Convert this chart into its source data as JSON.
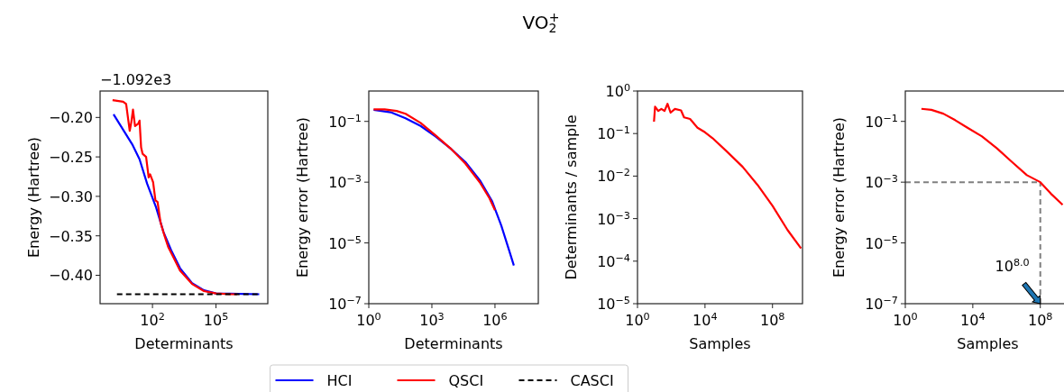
{
  "chart_data": [
    {
      "type": "line",
      "xlabel": "Determinants",
      "ylabel": "Energy (Hartree)",
      "log": "x",
      "legend": "bottom",
      "annotations": [
        "−1.092e3"
      ],
      "xlim": [
        0.335,
        28000000
      ],
      "xticks": [
        {
          "value": 100,
          "label": "10$^{2}$"
        },
        {
          "value": 100000,
          "label": "10$^{5}$"
        }
      ],
      "ylim": [
        -0.436,
        -0.1665
      ],
      "yticks": [
        {
          "value": -0.2,
          "label": "−0.20"
        },
        {
          "value": -0.25,
          "label": "−0.25"
        },
        {
          "value": -0.3,
          "label": "−0.30"
        },
        {
          "value": -0.35,
          "label": "−0.35"
        },
        {
          "value": -0.4,
          "label": "−0.40"
        }
      ],
      "series": [
        {
          "name": "HCI",
          "color": "#0000ff",
          "x": [
            1.45,
            11,
            24.5,
            56,
            148,
            330,
            755,
            2000,
            7400,
            27000,
            100000,
            11000000
          ],
          "values": [
            -0.196,
            -0.234,
            -0.253,
            -0.284,
            -0.314,
            -0.345,
            -0.368,
            -0.391,
            -0.41,
            -0.419,
            -0.423,
            -0.424
          ]
        },
        {
          "name": "QSCI",
          "color": "#ff0000",
          "x": [
            1.3,
            4.1,
            5.7,
            8.4,
            10,
            12,
            15,
            21,
            24.5,
            29,
            34,
            50,
            66,
            77,
            107,
            138,
            174,
            240,
            370,
            550,
            1050,
            2000,
            7400,
            27000,
            100000,
            510000,
            1000000
          ],
          "values": [
            -0.178,
            -0.18,
            -0.183,
            -0.217,
            -0.206,
            -0.19,
            -0.211,
            -0.208,
            -0.204,
            -0.238,
            -0.246,
            -0.25,
            -0.276,
            -0.272,
            -0.282,
            -0.305,
            -0.307,
            -0.333,
            -0.35,
            -0.364,
            -0.379,
            -0.394,
            -0.411,
            -0.42,
            -0.423,
            -0.424,
            -0.424
          ]
        },
        {
          "name": "CASCI",
          "color": "#000000",
          "line_style": "dashed",
          "x": [
            2.1,
            11000000
          ],
          "values": [
            -0.424,
            -0.424
          ]
        }
      ]
    },
    {
      "type": "line",
      "title": "VO$_{2}$$^{+}$",
      "xlabel": "Determinants",
      "ylabel": "Energy error (Hartree)",
      "log": "xy",
      "xlim": [
        1,
        115000000
      ],
      "xticks": [
        {
          "value": 1,
          "label": "10$^{0}$"
        },
        {
          "value": 1000,
          "label": "10$^{3}$"
        },
        {
          "value": 1000000,
          "label": "10$^{6}$"
        }
      ],
      "ylim": [
        1e-07,
        1
      ],
      "yticks": [
        {
          "value": 0.1,
          "label": "10$^{−1}$"
        },
        {
          "value": 0.001,
          "label": "10$^{−3}$"
        },
        {
          "value": 1e-05,
          "label": "10$^{−5}$"
        },
        {
          "value": 1e-07,
          "label": "10$^{−7}$"
        }
      ],
      "series": [
        {
          "name": "HCI",
          "color": "#0000ff",
          "x": [
            1.7,
            11,
            56,
            290,
            1480,
            7600,
            39000,
            200000,
            740000,
            2000000,
            4500000,
            7900000
          ],
          "values": [
            0.24,
            0.2,
            0.126,
            0.071,
            0.032,
            0.013,
            0.0046,
            0.0011,
            0.00023,
            3.7e-05,
            6.3e-06,
            1.8e-06
          ]
        },
        {
          "name": "QSCI",
          "color": "#ff0000",
          "x": [
            1.7,
            5.7,
            21,
            56,
            290,
            1480,
            7600,
            39000,
            200000,
            540000,
            1000000
          ],
          "values": [
            0.25,
            0.25,
            0.22,
            0.178,
            0.089,
            0.035,
            0.013,
            0.0041,
            0.00093,
            0.0003,
            0.00012
          ]
        }
      ]
    },
    {
      "type": "line",
      "xlabel": "Samples",
      "ylabel": "Determinants / sample",
      "log": "xy",
      "xlim": [
        1,
        6000000000
      ],
      "xticks": [
        {
          "value": 1,
          "label": "10$^{0}$"
        },
        {
          "value": 10000,
          "label": "10$^{4}$"
        },
        {
          "value": 100000000,
          "label": "10$^{8}$"
        }
      ],
      "ylim": [
        1e-05,
        1
      ],
      "yticks": [
        {
          "value": 1,
          "label": "10$^{0}$"
        },
        {
          "value": 0.1,
          "label": "10$^{−1}$"
        },
        {
          "value": 0.01,
          "label": "10$^{−2}$"
        },
        {
          "value": 0.001,
          "label": "10$^{−3}$"
        },
        {
          "value": 0.0001,
          "label": "10$^{−4}$"
        },
        {
          "value": 1e-05,
          "label": "10$^{−5}$"
        }
      ],
      "series": [
        {
          "name": "QSCI",
          "color": "#ff0000",
          "x": [
            9.5,
            11,
            17,
            26,
            40,
            60,
            91,
            166,
            380,
            575,
            1300,
            3600,
            10000,
            28000,
            210000,
            1700000,
            13000000,
            100000000,
            780000000,
            4900000000
          ],
          "values": [
            0.19,
            0.43,
            0.34,
            0.38,
            0.34,
            0.5,
            0.31,
            0.38,
            0.35,
            0.24,
            0.22,
            0.137,
            0.107,
            0.078,
            0.037,
            0.0165,
            0.0062,
            0.002,
            0.00054,
            0.0002
          ]
        }
      ]
    },
    {
      "type": "line",
      "xlabel": "Samples",
      "ylabel": "Energy error (Hartree)",
      "log": "xy",
      "annotations": [
        "10$^{8.0}$"
      ],
      "ref_lines": [
        {
          "axis": "y",
          "value": 0.001,
          "color": "#808080",
          "line_style": "dashed"
        },
        {
          "axis": "x",
          "value": 100000000,
          "color": "#808080",
          "line_style": "dashed"
        }
      ],
      "xlim": [
        1,
        6000000000
      ],
      "xticks": [
        {
          "value": 1,
          "label": "10$^{0}$"
        },
        {
          "value": 10000,
          "label": "10$^{4}$"
        },
        {
          "value": 100000000,
          "label": "10$^{8}$"
        }
      ],
      "ylim": [
        1e-07,
        1
      ],
      "yticks": [
        {
          "value": 0.1,
          "label": "10$^{−1}$"
        },
        {
          "value": 0.001,
          "label": "10$^{−3}$"
        },
        {
          "value": 1e-05,
          "label": "10$^{−5}$"
        },
        {
          "value": 1e-07,
          "label": "10$^{−7}$"
        }
      ],
      "series": [
        {
          "name": "QSCI",
          "color": "#ff0000",
          "x": [
            9,
            35,
            178,
            900,
            4600,
            35000,
            270000,
            2100000,
            16000000,
            100000000,
            420000000,
            2100000000
          ],
          "values": [
            0.26,
            0.24,
            0.18,
            0.11,
            0.063,
            0.032,
            0.013,
            0.0046,
            0.0017,
            0.001,
            0.00042,
            0.00018
          ]
        }
      ]
    }
  ]
}
